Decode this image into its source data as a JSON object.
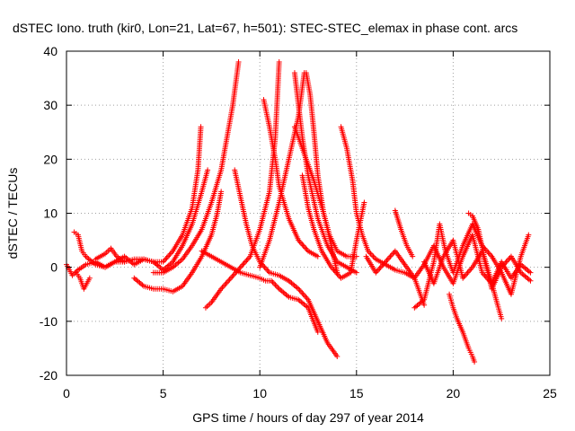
{
  "chart_data": {
    "type": "scatter",
    "title": "dSTEC Iono. truth (kir0, Lon=21, Lat=67, h=501): STEC-STEC_elemax in phase cont. arcs",
    "xlabel": "GPS time / hours of day 297 of year 2014",
    "ylabel": "dSTEC  / TECUs",
    "xlim": [
      0,
      25
    ],
    "ylim": [
      -20,
      40
    ],
    "xticks": [
      "0",
      "5",
      "10",
      "15",
      "20",
      "25"
    ],
    "yticks": [
      "-20",
      "-10",
      "0",
      "10",
      "20",
      "30",
      "40"
    ],
    "grid": true,
    "marker": "+",
    "color": "#ff0000",
    "series": [
      {
        "x": [
          0.0,
          0.3,
          0.6,
          1.0,
          1.5,
          2.0,
          2.5,
          3.0,
          3.5,
          4.0,
          4.5,
          5.0,
          5.5,
          6.0,
          6.5,
          6.8,
          6.95
        ],
        "y": [
          0.5,
          -1.5,
          -0.5,
          0.5,
          1.0,
          0.0,
          1.0,
          2.0,
          0.5,
          1.5,
          1.0,
          1.0,
          3.0,
          6.0,
          11.0,
          18.0,
          26.0
        ]
      },
      {
        "x": [
          0.4,
          0.6,
          0.8,
          1.0,
          1.5,
          2.0,
          2.5,
          3.0,
          3.5,
          4.0,
          4.5,
          5.0,
          5.5,
          6.0,
          6.5,
          7.0,
          7.3
        ],
        "y": [
          6.5,
          6.0,
          3.0,
          2.0,
          0.5,
          0.0,
          1.0,
          1.0,
          1.5,
          1.5,
          1.0,
          -0.5,
          1.0,
          4.0,
          8.0,
          14.0,
          18.0
        ]
      },
      {
        "x": [
          0.5,
          0.7,
          0.9,
          1.2
        ],
        "y": [
          -1.0,
          -2.0,
          -4.0,
          -2.0
        ]
      },
      {
        "x": [
          1.5,
          2.0,
          2.3,
          2.6,
          3.0
        ],
        "y": [
          1.5,
          2.5,
          3.5,
          2.0,
          1.0
        ]
      },
      {
        "x": [
          3.5,
          4.0,
          4.5,
          5.0,
          5.5,
          6.0,
          6.5,
          7.0,
          7.5,
          7.8,
          8.0
        ],
        "y": [
          -2.0,
          -3.5,
          -4.0,
          -4.0,
          -4.5,
          -3.5,
          -1.0,
          2.0,
          6.0,
          10.0,
          14.0
        ]
      },
      {
        "x": [
          4.5,
          5.0,
          5.5,
          6.0,
          6.5,
          7.0,
          7.5,
          8.0,
          8.3,
          8.6,
          8.9
        ],
        "y": [
          -1.0,
          -1.0,
          0.0,
          1.5,
          4.0,
          7.0,
          12.0,
          18.0,
          24.0,
          30.0,
          38.0
        ]
      },
      {
        "x": [
          7.2,
          7.5,
          8.0,
          8.5,
          9.0,
          9.5,
          10.0,
          10.5,
          10.8,
          11.0
        ],
        "y": [
          -7.5,
          -6.5,
          -4.0,
          -2.0,
          0.0,
          2.0,
          7.0,
          14.0,
          24.0,
          38.0
        ]
      },
      {
        "x": [
          8.7,
          9.0,
          9.3,
          9.6,
          10.0,
          10.5,
          11.0,
          11.5,
          12.0,
          12.5,
          13.0,
          13.5,
          14.0
        ],
        "y": [
          18.0,
          13.0,
          8.0,
          4.0,
          1.0,
          -1.0,
          -1.5,
          -2.5,
          -4.0,
          -6.0,
          -10.0,
          -14.0,
          -16.5
        ]
      },
      {
        "x": [
          7.0,
          7.5,
          8.0,
          8.5,
          9.0,
          9.5,
          10.0,
          10.3,
          10.6,
          11.0,
          11.5,
          12.0,
          12.5,
          13.0
        ],
        "y": [
          3.0,
          2.0,
          1.0,
          0.0,
          -1.0,
          -1.5,
          -2.0,
          -2.5,
          -2.5,
          -4.0,
          -5.5,
          -6.0,
          -7.5,
          -12.0
        ]
      },
      {
        "x": [
          10.2,
          10.5,
          10.8,
          11.0,
          11.5,
          12.0,
          12.5,
          13.0
        ],
        "y": [
          31.0,
          26.0,
          20.0,
          15.0,
          9.0,
          5.0,
          3.0,
          2.0
        ]
      },
      {
        "x": [
          10.0,
          10.5,
          11.0,
          11.5,
          12.0,
          12.3
        ],
        "y": [
          0.0,
          5.0,
          12.0,
          20.0,
          28.0,
          36.0
        ]
      },
      {
        "x": [
          11.8,
          12.0,
          12.2,
          12.5,
          13.0,
          13.5,
          14.0,
          14.5,
          15.0
        ],
        "y": [
          36.0,
          30.0,
          24.0,
          17.0,
          9.0,
          4.0,
          1.0,
          0.0,
          -1.0
        ]
      },
      {
        "x": [
          12.4,
          12.6,
          12.8,
          13.0,
          13.3,
          13.6,
          14.0,
          14.5,
          15.0
        ],
        "y": [
          36.0,
          32.0,
          25.0,
          17.0,
          10.0,
          6.0,
          3.0,
          2.0,
          2.0
        ]
      },
      {
        "x": [
          12.2,
          12.5,
          12.8,
          13.2,
          13.7,
          14.2,
          14.7,
          15.0,
          15.4
        ],
        "y": [
          17.0,
          11.0,
          7.0,
          3.0,
          0.0,
          -2.0,
          -1.0,
          5.0,
          12.0
        ]
      },
      {
        "x": [
          11.8,
          12.3,
          12.8,
          13.3,
          13.7,
          14.0
        ],
        "y": [
          26.0,
          21.0,
          16.0,
          10.0,
          4.0,
          -1.0
        ]
      },
      {
        "x": [
          14.2,
          14.5,
          14.8,
          15.0,
          15.3,
          15.6,
          16.0,
          16.5,
          17.0,
          17.5,
          18.0,
          18.5
        ],
        "y": [
          26.0,
          22.0,
          16.0,
          10.0,
          6.0,
          3.0,
          1.5,
          0.5,
          -0.5,
          -1.0,
          -2.0,
          -7.0
        ]
      },
      {
        "x": [
          15.5,
          16.0,
          16.5,
          17.0,
          17.5,
          18.0,
          18.5,
          19.0,
          19.5,
          20.0,
          20.5,
          21.0,
          21.5,
          22.0,
          22.5,
          23.0,
          23.5,
          24.0
        ],
        "y": [
          2.0,
          -1.0,
          1.0,
          3.0,
          0.5,
          -2.0,
          0.5,
          4.0,
          0.0,
          -3.0,
          2.0,
          6.0,
          -1.0,
          -3.0,
          1.0,
          -2.0,
          0.5,
          -1.0
        ]
      },
      {
        "x": [
          17.0,
          17.3,
          17.6,
          17.9
        ],
        "y": [
          10.5,
          7.0,
          4.0,
          2.0
        ]
      },
      {
        "x": [
          18.0,
          18.5,
          19.0,
          19.3,
          19.6,
          20.0,
          20.5,
          21.0,
          21.5,
          22.0,
          22.5,
          23.0,
          23.5,
          23.9
        ],
        "y": [
          -7.5,
          -6.0,
          1.0,
          8.0,
          3.0,
          -1.0,
          4.0,
          8.0,
          4.0,
          2.0,
          -1.0,
          -5.0,
          2.0,
          6.0
        ]
      },
      {
        "x": [
          19.8,
          20.0,
          20.2,
          20.5,
          20.8,
          21.0,
          21.1
        ],
        "y": [
          -5.0,
          -7.5,
          -9.5,
          -12.0,
          -15.0,
          -16.5,
          -17.5
        ]
      },
      {
        "x": [
          20.8,
          21.0,
          21.3,
          21.6,
          22.0,
          22.3,
          22.5
        ],
        "y": [
          10.0,
          9.5,
          7.0,
          2.0,
          -3.0,
          -7.0,
          -9.5
        ]
      },
      {
        "x": [
          18.5,
          19.0,
          19.5,
          20.0,
          20.5,
          21.0,
          21.5,
          22.0,
          22.5,
          23.0,
          23.5,
          24.0
        ],
        "y": [
          1.0,
          -3.0,
          2.0,
          5.0,
          -2.0,
          0.0,
          3.0,
          -4.0,
          0.0,
          2.0,
          -1.0,
          -2.5
        ]
      }
    ]
  }
}
